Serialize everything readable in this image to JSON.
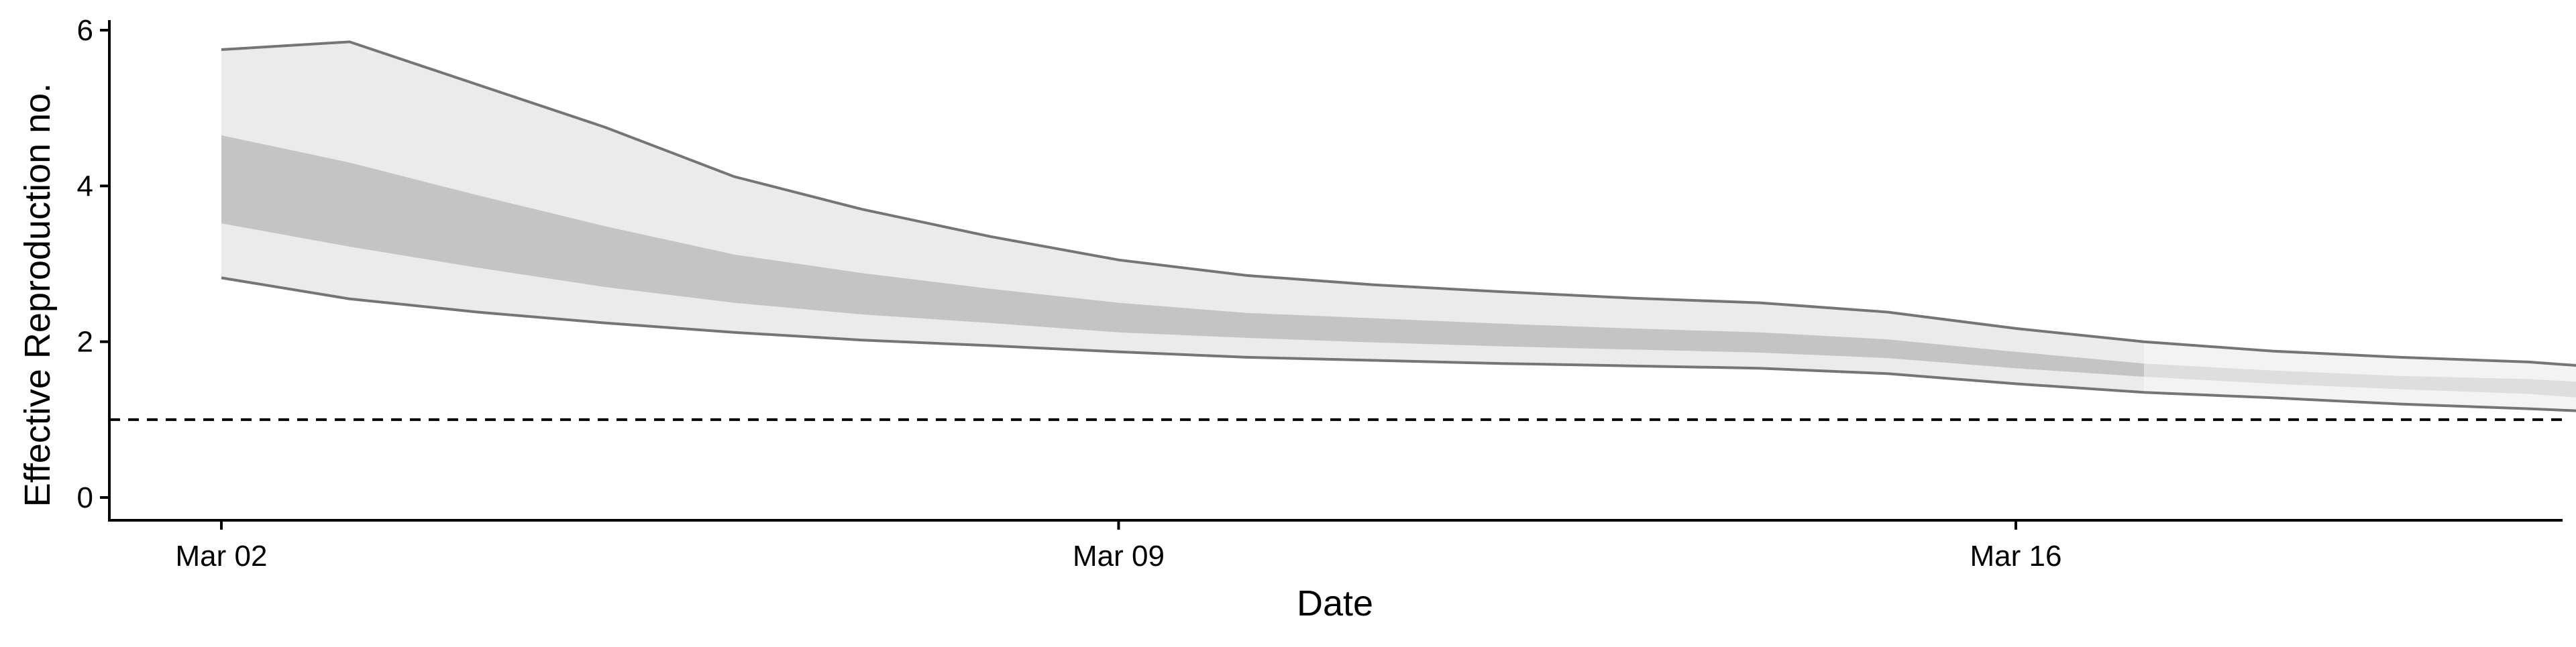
{
  "chart_data": {
    "type": "area",
    "title": "",
    "xlabel": "Date",
    "ylabel": "Effective Reproduction no.",
    "x_ticks": [
      "Mar 02",
      "Mar 09",
      "Mar 16"
    ],
    "y_ticks": [
      0,
      2,
      4,
      6
    ],
    "ylim": [
      0,
      6.1
    ],
    "xlim": [
      "2020-03-01",
      "2020-03-22"
    ],
    "grid": false,
    "x": [
      "2020-03-02",
      "2020-03-03",
      "2020-03-04",
      "2020-03-05",
      "2020-03-06",
      "2020-03-07",
      "2020-03-08",
      "2020-03-09",
      "2020-03-10",
      "2020-03-11",
      "2020-03-12",
      "2020-03-13",
      "2020-03-14",
      "2020-03-15",
      "2020-03-16",
      "2020-03-17",
      "2020-03-18",
      "2020-03-19",
      "2020-03-20",
      "2020-03-21"
    ],
    "series": [
      {
        "upper_90": [
          5.75,
          5.85,
          5.3,
          4.75,
          4.12,
          3.7,
          3.35,
          3.05,
          2.85,
          2.73,
          2.64,
          2.56,
          2.5,
          2.38,
          2.17,
          2.0,
          1.88,
          1.8,
          1.74,
          1.62
        ],
        "upper_50": [
          4.65,
          4.3,
          3.88,
          3.48,
          3.12,
          2.88,
          2.68,
          2.5,
          2.37,
          2.3,
          2.23,
          2.17,
          2.12,
          2.03,
          1.87,
          1.72,
          1.63,
          1.56,
          1.52,
          1.43
        ],
        "lower_50": [
          3.52,
          3.22,
          2.95,
          2.7,
          2.5,
          2.35,
          2.24,
          2.12,
          2.05,
          1.99,
          1.94,
          1.9,
          1.86,
          1.79,
          1.66,
          1.55,
          1.46,
          1.39,
          1.33,
          1.21
        ],
        "lower_90": [
          2.82,
          2.55,
          2.38,
          2.24,
          2.12,
          2.02,
          1.95,
          1.87,
          1.8,
          1.76,
          1.72,
          1.69,
          1.66,
          1.59,
          1.46,
          1.35,
          1.28,
          1.2,
          1.14,
          1.07
        ],
        "forecast_from": "2020-03-17"
      }
    ],
    "reference_line": 1,
    "colors": {
      "outer_band": "#ebebeb",
      "inner_band": "#c4c4c4",
      "outer_band_forecast": "#f3f3f3",
      "inner_band_forecast": "#dedede",
      "band_edge": "#757575",
      "reference_line": "#000000",
      "axis": "#000000"
    }
  }
}
